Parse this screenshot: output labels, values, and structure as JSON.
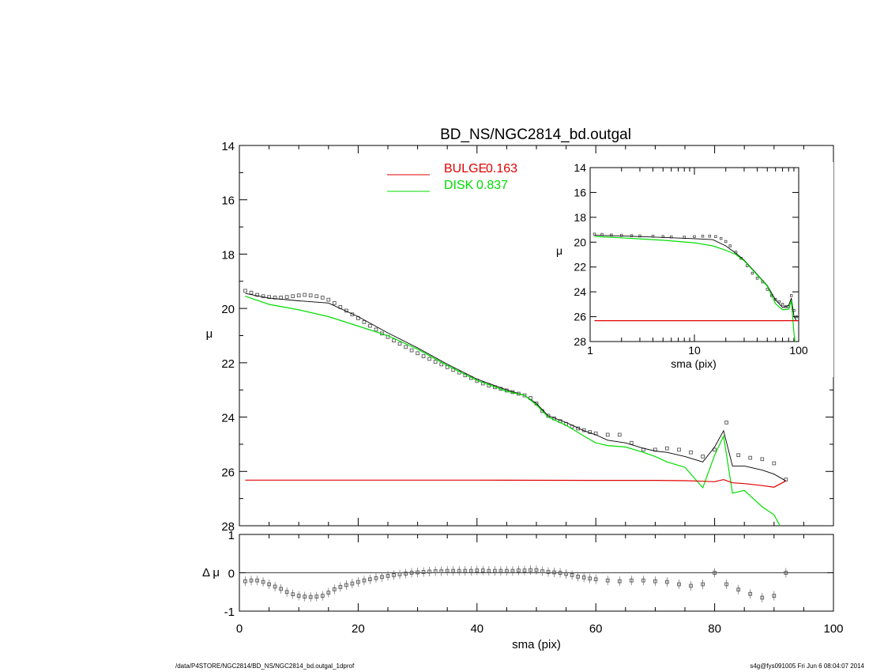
{
  "footer": {
    "left": "/data/P4STORE/NGC2814/BD_NS/NGC2814_bd.outgal_1dprof",
    "right": "s4g@fys091005  Fri Jun  6 08:04:07 2014"
  },
  "chart_data": [
    {
      "id": "main",
      "type": "line",
      "title": "BD_NS/NGC2814_bd.outgal",
      "xlabel": "",
      "ylabel": "μ",
      "xlim": [
        0,
        100
      ],
      "ylim": [
        28,
        14
      ],
      "yaxis_inverted": true,
      "yticks": [
        14,
        16,
        18,
        20,
        22,
        24,
        26,
        28
      ],
      "legend_placement": "top-center",
      "legend": [
        {
          "label": "BULGE",
          "value": "0.163",
          "color": "#e00000"
        },
        {
          "label": "DISK",
          "value": "0.837",
          "color": "#00dd00"
        }
      ],
      "series": [
        {
          "name": "data",
          "style": "squares",
          "color": "#555555",
          "x": [
            1,
            2,
            3,
            4,
            5,
            6,
            7,
            8,
            9,
            10,
            11,
            12,
            13,
            14,
            15,
            16,
            17,
            18,
            19,
            20,
            21,
            22,
            23,
            24,
            25,
            26,
            27,
            28,
            29,
            30,
            31,
            32,
            33,
            34,
            35,
            36,
            37,
            38,
            39,
            40,
            41,
            42,
            43,
            44,
            45,
            46,
            47,
            48,
            49,
            50,
            51,
            52,
            53,
            54,
            55,
            56,
            57,
            58,
            59,
            60,
            62,
            64,
            66,
            68,
            70,
            72,
            74,
            76,
            78,
            80,
            82,
            84,
            86,
            88,
            90,
            92
          ],
          "y": [
            19.35,
            19.42,
            19.5,
            19.55,
            19.58,
            19.6,
            19.6,
            19.58,
            19.55,
            19.52,
            19.5,
            19.52,
            19.55,
            19.6,
            19.68,
            19.8,
            19.95,
            20.08,
            20.22,
            20.36,
            20.5,
            20.64,
            20.78,
            20.92,
            21.05,
            21.18,
            21.3,
            21.42,
            21.54,
            21.65,
            21.76,
            21.86,
            21.96,
            22.06,
            22.16,
            22.26,
            22.36,
            22.46,
            22.56,
            22.66,
            22.76,
            22.84,
            22.9,
            22.96,
            23.02,
            23.08,
            23.14,
            23.2,
            23.3,
            23.5,
            23.78,
            23.95,
            24.05,
            24.15,
            24.25,
            24.35,
            24.42,
            24.48,
            24.55,
            24.6,
            24.65,
            24.65,
            24.95,
            25.2,
            25.2,
            25.15,
            25.2,
            25.3,
            25.45,
            25.2,
            24.2,
            25.4,
            25.5,
            25.55,
            25.7,
            26.3
          ]
        },
        {
          "name": "model",
          "style": "line",
          "color": "#000000",
          "x": [
            1,
            5,
            10,
            15,
            20,
            25,
            30,
            35,
            40,
            45,
            48,
            50,
            52,
            55,
            58,
            60,
            62,
            65,
            68,
            70,
            72,
            75,
            78,
            80,
            81.5,
            83,
            85,
            88,
            90,
            92
          ],
          "y": [
            19.45,
            19.62,
            19.72,
            19.8,
            20.3,
            20.9,
            21.45,
            22.05,
            22.6,
            23.0,
            23.2,
            23.5,
            23.95,
            24.2,
            24.5,
            24.65,
            24.85,
            24.95,
            25.15,
            25.25,
            25.3,
            25.45,
            25.65,
            25.1,
            24.5,
            25.8,
            25.8,
            25.95,
            26.1,
            26.35
          ]
        },
        {
          "name": "disk",
          "style": "line",
          "color": "#00dd00",
          "x": [
            1,
            5,
            10,
            15,
            20,
            25,
            30,
            35,
            40,
            45,
            48,
            50,
            52,
            55,
            58,
            60,
            62,
            65,
            68,
            70,
            72,
            75,
            78,
            80,
            81.5,
            83,
            85,
            88,
            90,
            91
          ],
          "y": [
            19.55,
            19.85,
            20.05,
            20.3,
            20.65,
            21.0,
            21.5,
            22.1,
            22.65,
            23.05,
            23.2,
            23.55,
            24.0,
            24.3,
            24.7,
            24.95,
            25.05,
            25.1,
            25.3,
            25.45,
            25.65,
            25.85,
            26.6,
            25.4,
            24.7,
            26.8,
            26.7,
            27.3,
            27.6,
            28.0
          ]
        },
        {
          "name": "bulge",
          "style": "line",
          "color": "#e00000",
          "x": [
            1,
            20,
            40,
            60,
            70,
            75,
            78,
            80,
            81.5,
            83,
            85,
            88,
            90,
            92
          ],
          "y": [
            26.32,
            26.32,
            26.32,
            26.33,
            26.33,
            26.34,
            26.36,
            26.38,
            26.3,
            26.42,
            26.45,
            26.52,
            26.58,
            26.35
          ]
        }
      ]
    },
    {
      "id": "residual",
      "type": "scatter",
      "xlabel": "sma (pix)",
      "ylabel": "Δ μ",
      "xlim": [
        0,
        100
      ],
      "ylim": [
        -1,
        1
      ],
      "xticks": [
        0,
        20,
        40,
        60,
        80,
        100
      ],
      "yticks": [
        1,
        0,
        -1
      ],
      "series": [
        {
          "name": "residual",
          "style": "squares-errorbars",
          "color": "#555555",
          "x": [
            1,
            2,
            3,
            4,
            5,
            6,
            7,
            8,
            9,
            10,
            11,
            12,
            13,
            14,
            15,
            16,
            17,
            18,
            19,
            20,
            21,
            22,
            23,
            24,
            25,
            26,
            27,
            28,
            29,
            30,
            31,
            32,
            33,
            34,
            35,
            36,
            37,
            38,
            39,
            40,
            41,
            42,
            43,
            44,
            45,
            46,
            47,
            48,
            49,
            50,
            51,
            52,
            53,
            54,
            55,
            56,
            57,
            58,
            59,
            60,
            62,
            64,
            66,
            68,
            70,
            72,
            74,
            76,
            78,
            80,
            82,
            84,
            86,
            88,
            90,
            92
          ],
          "y": [
            -0.22,
            -0.2,
            -0.2,
            -0.24,
            -0.3,
            -0.36,
            -0.42,
            -0.5,
            -0.56,
            -0.6,
            -0.62,
            -0.63,
            -0.62,
            -0.6,
            -0.52,
            -0.43,
            -0.37,
            -0.32,
            -0.28,
            -0.24,
            -0.2,
            -0.17,
            -0.14,
            -0.11,
            -0.08,
            -0.06,
            -0.04,
            -0.02,
            0.0,
            0.01,
            0.02,
            0.03,
            0.04,
            0.04,
            0.05,
            0.05,
            0.05,
            0.05,
            0.05,
            0.06,
            0.06,
            0.05,
            0.05,
            0.05,
            0.05,
            0.05,
            0.06,
            0.06,
            0.07,
            0.07,
            0.04,
            0.02,
            0.01,
            0.0,
            -0.03,
            -0.06,
            -0.1,
            -0.12,
            -0.15,
            -0.17,
            -0.2,
            -0.22,
            -0.2,
            -0.2,
            -0.22,
            -0.24,
            -0.3,
            -0.34,
            -0.3,
            0.0,
            -0.3,
            -0.44,
            -0.55,
            -0.65,
            -0.6,
            0.0
          ]
        }
      ]
    },
    {
      "id": "inset",
      "type": "line",
      "xlabel": "sma (pix)",
      "ylabel": "μ",
      "xscale": "log",
      "xlim": [
        1,
        100
      ],
      "ylim": [
        28,
        14
      ],
      "xticks": [
        1,
        10,
        100
      ],
      "yticks": [
        14,
        16,
        18,
        20,
        22,
        24,
        26,
        28
      ],
      "series": [
        {
          "name": "data",
          "style": "squares",
          "color": "#555555",
          "x": [
            1.1,
            1.3,
            1.6,
            2,
            2.5,
            3,
            4,
            5,
            6,
            8,
            10,
            12,
            14,
            16,
            18,
            20,
            22,
            25,
            28,
            32,
            36,
            40,
            45,
            50,
            55,
            60,
            65,
            70,
            75,
            80,
            85,
            90,
            95
          ],
          "y": [
            19.35,
            19.38,
            19.42,
            19.45,
            19.48,
            19.5,
            19.52,
            19.55,
            19.58,
            19.6,
            19.55,
            19.52,
            19.52,
            19.55,
            19.7,
            19.95,
            20.3,
            20.8,
            21.3,
            21.9,
            22.5,
            22.9,
            23.2,
            23.8,
            24.3,
            24.6,
            24.8,
            25.0,
            25.2,
            25.2,
            24.3,
            25.5,
            26.0
          ]
        },
        {
          "name": "model",
          "style": "line",
          "color": "#000000",
          "x": [
            1.1,
            2,
            5,
            10,
            15,
            20,
            25,
            30,
            40,
            50,
            60,
            70,
            80,
            85,
            90,
            95
          ],
          "y": [
            19.45,
            19.5,
            19.62,
            19.72,
            19.8,
            20.3,
            20.9,
            21.45,
            22.6,
            23.5,
            24.65,
            25.25,
            25.1,
            24.5,
            25.95,
            26.35
          ]
        },
        {
          "name": "disk",
          "style": "line",
          "color": "#00dd00",
          "x": [
            1.1,
            2,
            5,
            10,
            15,
            20,
            25,
            30,
            40,
            50,
            60,
            70,
            80,
            85,
            90,
            92
          ],
          "y": [
            19.55,
            19.65,
            19.85,
            20.05,
            20.3,
            20.65,
            21.0,
            21.5,
            22.65,
            23.55,
            24.95,
            25.45,
            25.4,
            24.7,
            27.3,
            28.0
          ]
        },
        {
          "name": "bulge",
          "style": "line",
          "color": "#e00000",
          "x": [
            1.1,
            100
          ],
          "y": [
            26.32,
            26.32
          ]
        }
      ]
    }
  ]
}
